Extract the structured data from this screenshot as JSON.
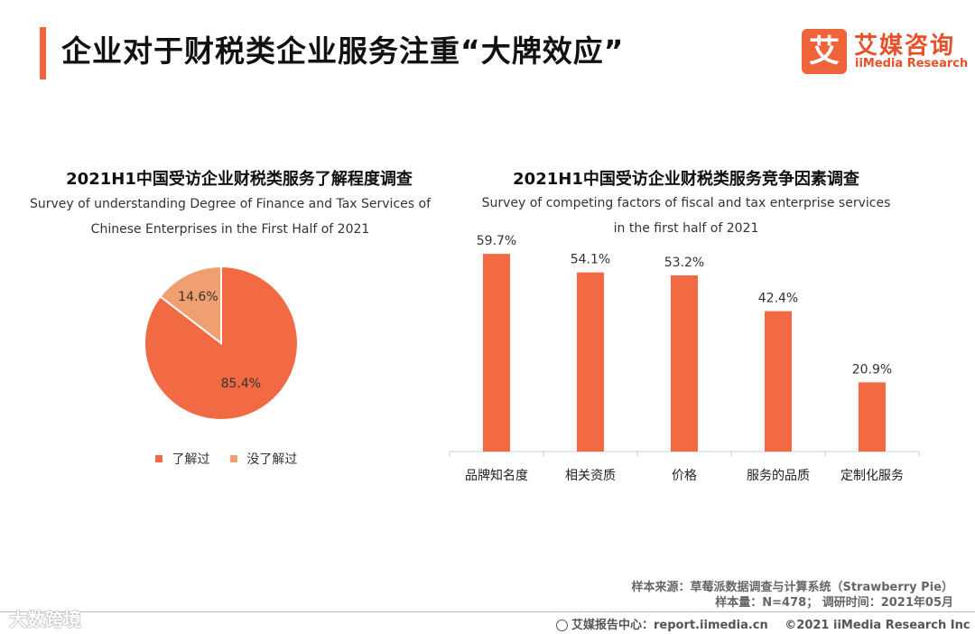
{
  "header": {
    "title": "企业对于财税类企业服务注重“大牌效应”",
    "logo_mark": "艾",
    "logo_cn": "艾媒咨询",
    "logo_en": "iiMedia Research"
  },
  "colors": {
    "accent": "#f0643c",
    "pie_primary": "#f26a44",
    "pie_secondary": "#f0a070",
    "bar": "#f26a44"
  },
  "left_chart": {
    "title": "2021H1中国受访企业财税类服务了解程度调查",
    "subtitle_line1": "Survey of understanding Degree of Finance and Tax Services of",
    "subtitle_line2": "Chinese Enterprises in the First Half of 2021"
  },
  "right_chart": {
    "title": "2021H1中国受访企业财税类服务竞争因素调查",
    "subtitle_line1": "Survey of competing factors of fiscal and tax enterprise services",
    "subtitle_line2": "in the first half of 2021"
  },
  "chart_data": [
    {
      "type": "pie",
      "title": "2021H1中国受访企业财税类服务了解程度调查",
      "labels": [
        "了解过",
        "没了解过"
      ],
      "values": [
        85.4,
        14.6
      ],
      "value_labels": [
        "85.4%",
        "14.6%"
      ],
      "legend_position": "bottom"
    },
    {
      "type": "bar",
      "title": "2021H1中国受访企业财税类服务竞争因素调查",
      "categories": [
        "品牌知名度",
        "相关资质",
        "价格",
        "服务的品质",
        "定制化服务"
      ],
      "values": [
        59.7,
        54.1,
        53.2,
        42.4,
        20.9
      ],
      "value_labels": [
        "59.7%",
        "54.1%",
        "53.2%",
        "42.4%",
        "20.9%"
      ],
      "ylim": [
        0,
        75
      ],
      "grid": false
    }
  ],
  "footer": {
    "source": "样本来源：草莓派数据调查与计算系统（Strawberry Pie）",
    "sample": "样本量：N=478； 调研时间：2021年05月",
    "report_center": "艾媒报告中心：report.iimedia.cn",
    "copyright": "©2021  iiMedia Research  Inc",
    "watermark": "大数跨境"
  }
}
